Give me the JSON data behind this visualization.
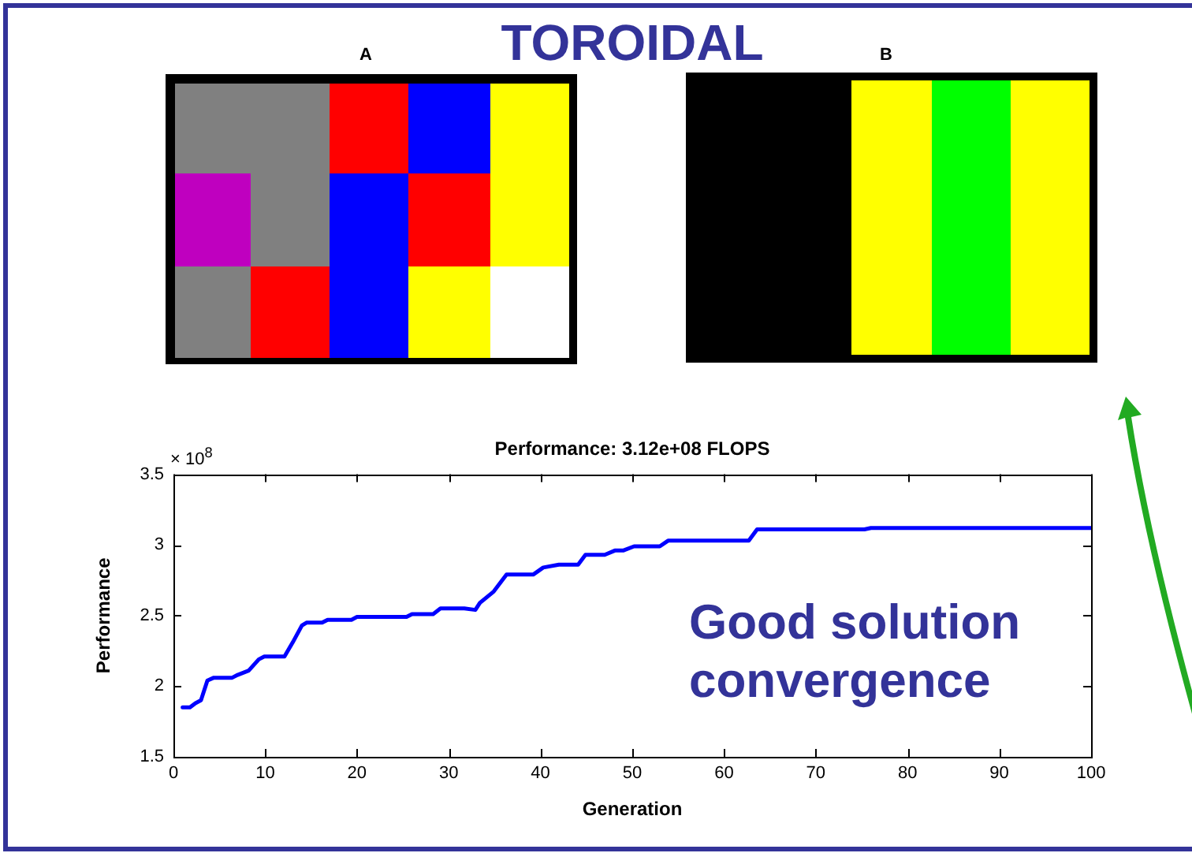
{
  "chart_data": {
    "type": "line",
    "title": "TOROIDAL",
    "subtitle": "Performance: 3.12e+08 FLOPS",
    "xlabel": "Generation",
    "ylabel": "Performance",
    "x": [
      1,
      1.8,
      2.4,
      3,
      3.7,
      4.4,
      6.4,
      7,
      8.2,
      9.3,
      9.9,
      12.1,
      13,
      14,
      14.5,
      16.2,
      16.8,
      19.4,
      20,
      25.4,
      26,
      28.3,
      29.1,
      31.7,
      32.9,
      33.4,
      34.9,
      36.3,
      39.2,
      40.3,
      42,
      44.1,
      44.9,
      47,
      48.1,
      49,
      50.2,
      53,
      53.9,
      62.7,
      63.6,
      75.3,
      76,
      100
    ],
    "series": [
      {
        "color": "#0000ff",
        "values": [
          1.85,
          1.85,
          1.88,
          1.9,
          2.04,
          2.06,
          2.06,
          2.08,
          2.11,
          2.19,
          2.21,
          2.21,
          2.31,
          2.43,
          2.45,
          2.45,
          2.47,
          2.47,
          2.49,
          2.49,
          2.51,
          2.51,
          2.55,
          2.55,
          2.54,
          2.59,
          2.67,
          2.79,
          2.79,
          2.84,
          2.86,
          2.86,
          2.93,
          2.93,
          2.96,
          2.96,
          2.99,
          2.99,
          3.03,
          3.03,
          3.11,
          3.11,
          3.12,
          3.12
        ]
      }
    ],
    "xlim": [
      0,
      100
    ],
    "xticks": [
      0,
      10,
      20,
      30,
      40,
      50,
      60,
      70,
      80,
      90,
      100
    ],
    "ylim": [
      1.5,
      3.5
    ],
    "yticks": [
      1.5,
      2,
      2.5,
      3,
      3.5
    ],
    "grid": false,
    "legend": false,
    "marker": "none",
    "line_style": "solid",
    "annotations": [
      "A",
      "B",
      "× 10$^{8}$",
      "Good solution convergence"
    ]
  }
}
